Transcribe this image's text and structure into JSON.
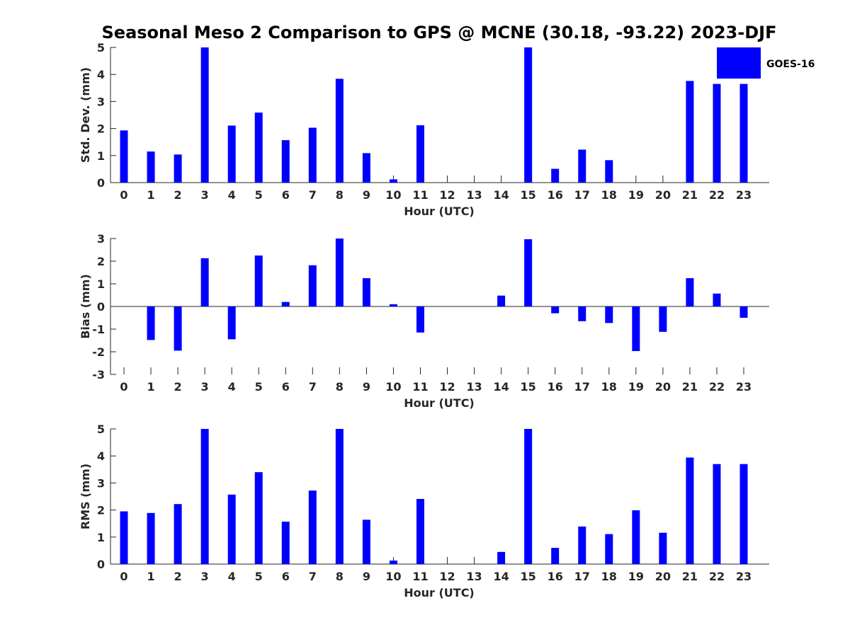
{
  "chart_data": {
    "type": "bar",
    "title": "Seasonal Meso 2 Comparison to GPS @ MCNE (30.18, -93.22) 2023-DJF",
    "legend": {
      "label": "GOES-16",
      "color": "#0000ff",
      "placement": "top-right"
    },
    "categories": [
      "0",
      "1",
      "2",
      "3",
      "4",
      "5",
      "6",
      "7",
      "8",
      "9",
      "10",
      "11",
      "12",
      "13",
      "14",
      "15",
      "16",
      "17",
      "18",
      "19",
      "20",
      "21",
      "22",
      "23"
    ],
    "panels": [
      {
        "name": "std-dev",
        "xlabel": "Hour (UTC)",
        "ylabel": "Std. Dev. (mm)",
        "ylim": [
          0,
          5
        ],
        "yticks": [
          "0",
          "1",
          "2",
          "3",
          "4",
          "5"
        ],
        "series": [
          {
            "name": "GOES-16",
            "values": [
              1.93,
              1.15,
              1.04,
              5.0,
              2.11,
              2.59,
              1.57,
              2.03,
              3.84,
              1.09,
              0.12,
              2.12,
              0,
              0,
              0,
              5.0,
              0.51,
              1.22,
              0.83,
              0,
              0,
              3.76,
              3.65,
              3.65
            ]
          }
        ]
      },
      {
        "name": "bias",
        "xlabel": "Hour (UTC)",
        "ylabel": "Bias (mm)",
        "ylim": [
          -3,
          3
        ],
        "yticks": [
          "-3",
          "-2",
          "-1",
          "0",
          "1",
          "2",
          "3"
        ],
        "series": [
          {
            "name": "GOES-16",
            "values": [
              0,
              -1.48,
              -1.95,
              2.13,
              -1.45,
              2.25,
              0.2,
              1.82,
              3.0,
              1.25,
              0.1,
              -1.15,
              0,
              0,
              0.48,
              2.97,
              -0.3,
              -0.65,
              -0.73,
              -1.97,
              -1.12,
              1.25,
              0.57,
              -0.5
            ]
          }
        ]
      },
      {
        "name": "rms",
        "xlabel": "Hour (UTC)",
        "ylabel": "RMS (mm)",
        "ylim": [
          0,
          5
        ],
        "yticks": [
          "0",
          "1",
          "2",
          "3",
          "4",
          "5"
        ],
        "series": [
          {
            "name": "GOES-16",
            "values": [
              1.95,
              1.89,
              2.22,
              5.0,
              2.57,
              3.4,
              1.57,
              2.72,
              5.0,
              1.64,
              0.13,
              2.41,
              0,
              0,
              0.45,
              5.0,
              0.6,
              1.39,
              1.11,
              1.99,
              1.16,
              3.94,
              3.7,
              3.7
            ]
          }
        ]
      }
    ]
  }
}
